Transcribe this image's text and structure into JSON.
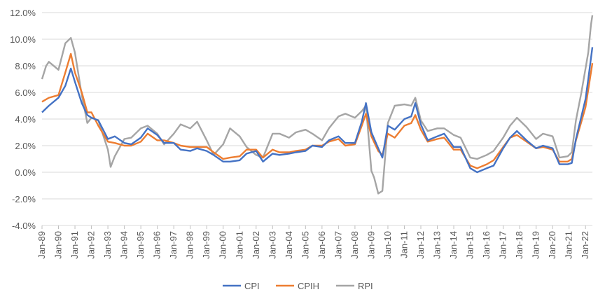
{
  "chart_data": {
    "type": "line",
    "title": "",
    "xlabel": "",
    "ylabel": "",
    "ylim": [
      -4.0,
      12.0
    ],
    "yticks": [
      "-4.0%",
      "-2.0%",
      "0.0%",
      "2.0%",
      "4.0%",
      "6.0%",
      "8.0%",
      "10.0%",
      "12.0%"
    ],
    "xticks": [
      "Jan-89",
      "Jan-90",
      "Jan-91",
      "Jan-92",
      "Jan-93",
      "Jan-94",
      "Jan-95",
      "Jan-96",
      "Jan-97",
      "Jan-98",
      "Jan-99",
      "Jan-00",
      "Jan-01",
      "Jan-02",
      "Jan-03",
      "Jan-04",
      "Jan-05",
      "Jan-06",
      "Jan-07",
      "Jan-08",
      "Jan-09",
      "Jan-10",
      "Jan-11",
      "Jan-12",
      "Jan-13",
      "Jan-14",
      "Jan-15",
      "Jan-16",
      "Jan-17",
      "Jan-18",
      "Jan-19",
      "Jan-20",
      "Jan-21",
      "Jan-22"
    ],
    "x_range": [
      "1989-01",
      "2022-06"
    ],
    "grid": "horizontal",
    "legend_position": "bottom",
    "series": [
      {
        "name": "CPI",
        "color": "#4472C4",
        "points": [
          [
            "1989-01",
            4.5
          ],
          [
            "1989-06",
            5.0
          ],
          [
            "1990-01",
            5.6
          ],
          [
            "1990-06",
            6.5
          ],
          [
            "1990-10",
            7.8
          ],
          [
            "1991-01",
            6.8
          ],
          [
            "1991-06",
            5.2
          ],
          [
            "1991-10",
            4.3
          ],
          [
            "1992-01",
            4.1
          ],
          [
            "1992-06",
            3.9
          ],
          [
            "1993-01",
            2.5
          ],
          [
            "1993-06",
            2.7
          ],
          [
            "1994-01",
            2.2
          ],
          [
            "1994-06",
            2.1
          ],
          [
            "1995-01",
            2.6
          ],
          [
            "1995-06",
            3.3
          ],
          [
            "1996-01",
            2.8
          ],
          [
            "1996-06",
            2.2
          ],
          [
            "1997-01",
            2.2
          ],
          [
            "1997-06",
            1.7
          ],
          [
            "1998-01",
            1.6
          ],
          [
            "1998-06",
            1.8
          ],
          [
            "1999-01",
            1.6
          ],
          [
            "1999-06",
            1.3
          ],
          [
            "2000-01",
            0.8
          ],
          [
            "2000-06",
            0.8
          ],
          [
            "2001-01",
            0.9
          ],
          [
            "2001-06",
            1.4
          ],
          [
            "2002-01",
            1.6
          ],
          [
            "2002-06",
            0.8
          ],
          [
            "2003-01",
            1.4
          ],
          [
            "2003-06",
            1.3
          ],
          [
            "2004-01",
            1.4
          ],
          [
            "2004-06",
            1.5
          ],
          [
            "2005-01",
            1.6
          ],
          [
            "2005-06",
            2.0
          ],
          [
            "2006-01",
            1.9
          ],
          [
            "2006-06",
            2.4
          ],
          [
            "2007-01",
            2.7
          ],
          [
            "2007-06",
            2.2
          ],
          [
            "2008-01",
            2.2
          ],
          [
            "2008-06",
            3.8
          ],
          [
            "2008-09",
            5.2
          ],
          [
            "2009-01",
            3.0
          ],
          [
            "2009-06",
            1.8
          ],
          [
            "2009-09",
            1.1
          ],
          [
            "2010-01",
            3.5
          ],
          [
            "2010-06",
            3.2
          ],
          [
            "2011-01",
            4.0
          ],
          [
            "2011-06",
            4.2
          ],
          [
            "2011-09",
            5.2
          ],
          [
            "2012-01",
            3.6
          ],
          [
            "2012-06",
            2.4
          ],
          [
            "2013-01",
            2.7
          ],
          [
            "2013-06",
            2.9
          ],
          [
            "2014-01",
            1.9
          ],
          [
            "2014-06",
            1.9
          ],
          [
            "2015-01",
            0.3
          ],
          [
            "2015-06",
            0.0
          ],
          [
            "2016-01",
            0.3
          ],
          [
            "2016-06",
            0.5
          ],
          [
            "2017-01",
            1.8
          ],
          [
            "2017-06",
            2.6
          ],
          [
            "2017-11",
            3.1
          ],
          [
            "2018-06",
            2.4
          ],
          [
            "2019-01",
            1.8
          ],
          [
            "2019-06",
            2.0
          ],
          [
            "2020-01",
            1.8
          ],
          [
            "2020-06",
            0.6
          ],
          [
            "2020-12",
            0.6
          ],
          [
            "2021-03",
            0.7
          ],
          [
            "2021-06",
            2.5
          ],
          [
            "2021-10",
            4.2
          ],
          [
            "2022-01",
            5.5
          ],
          [
            "2022-03",
            7.0
          ],
          [
            "2022-06",
            9.4
          ]
        ]
      },
      {
        "name": "CPIH",
        "color": "#ED7D31",
        "points": [
          [
            "1989-01",
            5.3
          ],
          [
            "1989-06",
            5.6
          ],
          [
            "1990-01",
            5.8
          ],
          [
            "1990-06",
            7.5
          ],
          [
            "1990-10",
            8.9
          ],
          [
            "1991-01",
            7.5
          ],
          [
            "1991-06",
            6.0
          ],
          [
            "1991-10",
            4.5
          ],
          [
            "1992-01",
            4.5
          ],
          [
            "1992-06",
            3.5
          ],
          [
            "1993-01",
            2.3
          ],
          [
            "1993-06",
            2.2
          ],
          [
            "1994-01",
            2.0
          ],
          [
            "1994-06",
            2.0
          ],
          [
            "1995-01",
            2.3
          ],
          [
            "1995-06",
            2.9
          ],
          [
            "1996-01",
            2.4
          ],
          [
            "1996-06",
            2.4
          ],
          [
            "1997-01",
            2.2
          ],
          [
            "1997-06",
            2.0
          ],
          [
            "1998-01",
            1.9
          ],
          [
            "1998-06",
            1.9
          ],
          [
            "1999-01",
            1.9
          ],
          [
            "1999-06",
            1.5
          ],
          [
            "2000-01",
            1.0
          ],
          [
            "2000-06",
            1.1
          ],
          [
            "2001-01",
            1.2
          ],
          [
            "2001-06",
            1.7
          ],
          [
            "2002-01",
            1.7
          ],
          [
            "2002-06",
            1.1
          ],
          [
            "2003-01",
            1.7
          ],
          [
            "2003-06",
            1.5
          ],
          [
            "2004-01",
            1.5
          ],
          [
            "2004-06",
            1.6
          ],
          [
            "2005-01",
            1.7
          ],
          [
            "2005-06",
            2.0
          ],
          [
            "2006-01",
            2.0
          ],
          [
            "2006-06",
            2.3
          ],
          [
            "2007-01",
            2.5
          ],
          [
            "2007-06",
            2.0
          ],
          [
            "2008-01",
            2.1
          ],
          [
            "2008-06",
            3.5
          ],
          [
            "2008-09",
            4.4
          ],
          [
            "2009-01",
            2.7
          ],
          [
            "2009-06",
            1.6
          ],
          [
            "2009-09",
            1.3
          ],
          [
            "2010-01",
            2.9
          ],
          [
            "2010-06",
            2.6
          ],
          [
            "2011-01",
            3.5
          ],
          [
            "2011-06",
            3.7
          ],
          [
            "2011-09",
            4.3
          ],
          [
            "2012-01",
            3.2
          ],
          [
            "2012-06",
            2.3
          ],
          [
            "2013-01",
            2.5
          ],
          [
            "2013-06",
            2.6
          ],
          [
            "2014-01",
            1.7
          ],
          [
            "2014-06",
            1.7
          ],
          [
            "2015-01",
            0.5
          ],
          [
            "2015-06",
            0.3
          ],
          [
            "2016-01",
            0.6
          ],
          [
            "2016-06",
            0.9
          ],
          [
            "2017-01",
            1.9
          ],
          [
            "2017-06",
            2.6
          ],
          [
            "2017-11",
            2.8
          ],
          [
            "2018-06",
            2.3
          ],
          [
            "2019-01",
            1.8
          ],
          [
            "2019-06",
            1.9
          ],
          [
            "2020-01",
            1.7
          ],
          [
            "2020-06",
            0.8
          ],
          [
            "2020-12",
            0.8
          ],
          [
            "2021-03",
            1.0
          ],
          [
            "2021-06",
            2.4
          ],
          [
            "2021-10",
            3.8
          ],
          [
            "2022-01",
            4.9
          ],
          [
            "2022-03",
            6.2
          ],
          [
            "2022-06",
            8.2
          ]
        ]
      },
      {
        "name": "RPI",
        "color": "#A5A5A5",
        "points": [
          [
            "1989-01",
            7.0
          ],
          [
            "1989-04",
            8.0
          ],
          [
            "1989-06",
            8.3
          ],
          [
            "1990-01",
            7.7
          ],
          [
            "1990-06",
            9.7
          ],
          [
            "1990-10",
            10.1
          ],
          [
            "1991-01",
            9.0
          ],
          [
            "1991-06",
            5.8
          ],
          [
            "1991-10",
            3.7
          ],
          [
            "1992-01",
            4.1
          ],
          [
            "1992-06",
            3.9
          ],
          [
            "1993-01",
            1.7
          ],
          [
            "1993-03",
            0.4
          ],
          [
            "1993-06",
            1.2
          ],
          [
            "1994-01",
            2.5
          ],
          [
            "1994-06",
            2.6
          ],
          [
            "1995-01",
            3.3
          ],
          [
            "1995-06",
            3.5
          ],
          [
            "1996-01",
            2.9
          ],
          [
            "1996-06",
            2.1
          ],
          [
            "1997-01",
            2.9
          ],
          [
            "1997-06",
            3.6
          ],
          [
            "1998-01",
            3.3
          ],
          [
            "1998-06",
            3.8
          ],
          [
            "1999-01",
            2.4
          ],
          [
            "1999-06",
            1.3
          ],
          [
            "2000-01",
            2.1
          ],
          [
            "2000-06",
            3.3
          ],
          [
            "2001-01",
            2.7
          ],
          [
            "2001-06",
            1.9
          ],
          [
            "2002-01",
            1.3
          ],
          [
            "2002-06",
            1.1
          ],
          [
            "2003-01",
            2.9
          ],
          [
            "2003-06",
            2.9
          ],
          [
            "2004-01",
            2.6
          ],
          [
            "2004-06",
            3.0
          ],
          [
            "2005-01",
            3.2
          ],
          [
            "2005-06",
            2.9
          ],
          [
            "2006-01",
            2.4
          ],
          [
            "2006-06",
            3.3
          ],
          [
            "2007-01",
            4.2
          ],
          [
            "2007-06",
            4.4
          ],
          [
            "2008-01",
            4.1
          ],
          [
            "2008-06",
            4.6
          ],
          [
            "2008-09",
            5.0
          ],
          [
            "2009-01",
            0.1
          ],
          [
            "2009-03",
            -0.4
          ],
          [
            "2009-06",
            -1.6
          ],
          [
            "2009-09",
            -1.4
          ],
          [
            "2010-01",
            3.7
          ],
          [
            "2010-06",
            5.0
          ],
          [
            "2011-01",
            5.1
          ],
          [
            "2011-06",
            5.0
          ],
          [
            "2011-09",
            5.6
          ],
          [
            "2012-01",
            3.9
          ],
          [
            "2012-06",
            3.1
          ],
          [
            "2013-01",
            3.3
          ],
          [
            "2013-06",
            3.3
          ],
          [
            "2014-01",
            2.8
          ],
          [
            "2014-06",
            2.6
          ],
          [
            "2015-01",
            1.1
          ],
          [
            "2015-06",
            1.0
          ],
          [
            "2016-01",
            1.3
          ],
          [
            "2016-06",
            1.6
          ],
          [
            "2017-01",
            2.6
          ],
          [
            "2017-06",
            3.5
          ],
          [
            "2017-11",
            4.1
          ],
          [
            "2018-06",
            3.4
          ],
          [
            "2019-01",
            2.5
          ],
          [
            "2019-06",
            2.9
          ],
          [
            "2020-01",
            2.7
          ],
          [
            "2020-06",
            1.1
          ],
          [
            "2020-12",
            1.2
          ],
          [
            "2021-03",
            1.5
          ],
          [
            "2021-06",
            3.9
          ],
          [
            "2021-10",
            6.0
          ],
          [
            "2022-01",
            7.8
          ],
          [
            "2022-03",
            9.0
          ],
          [
            "2022-05",
            11.1
          ],
          [
            "2022-06",
            11.8
          ]
        ]
      }
    ]
  }
}
